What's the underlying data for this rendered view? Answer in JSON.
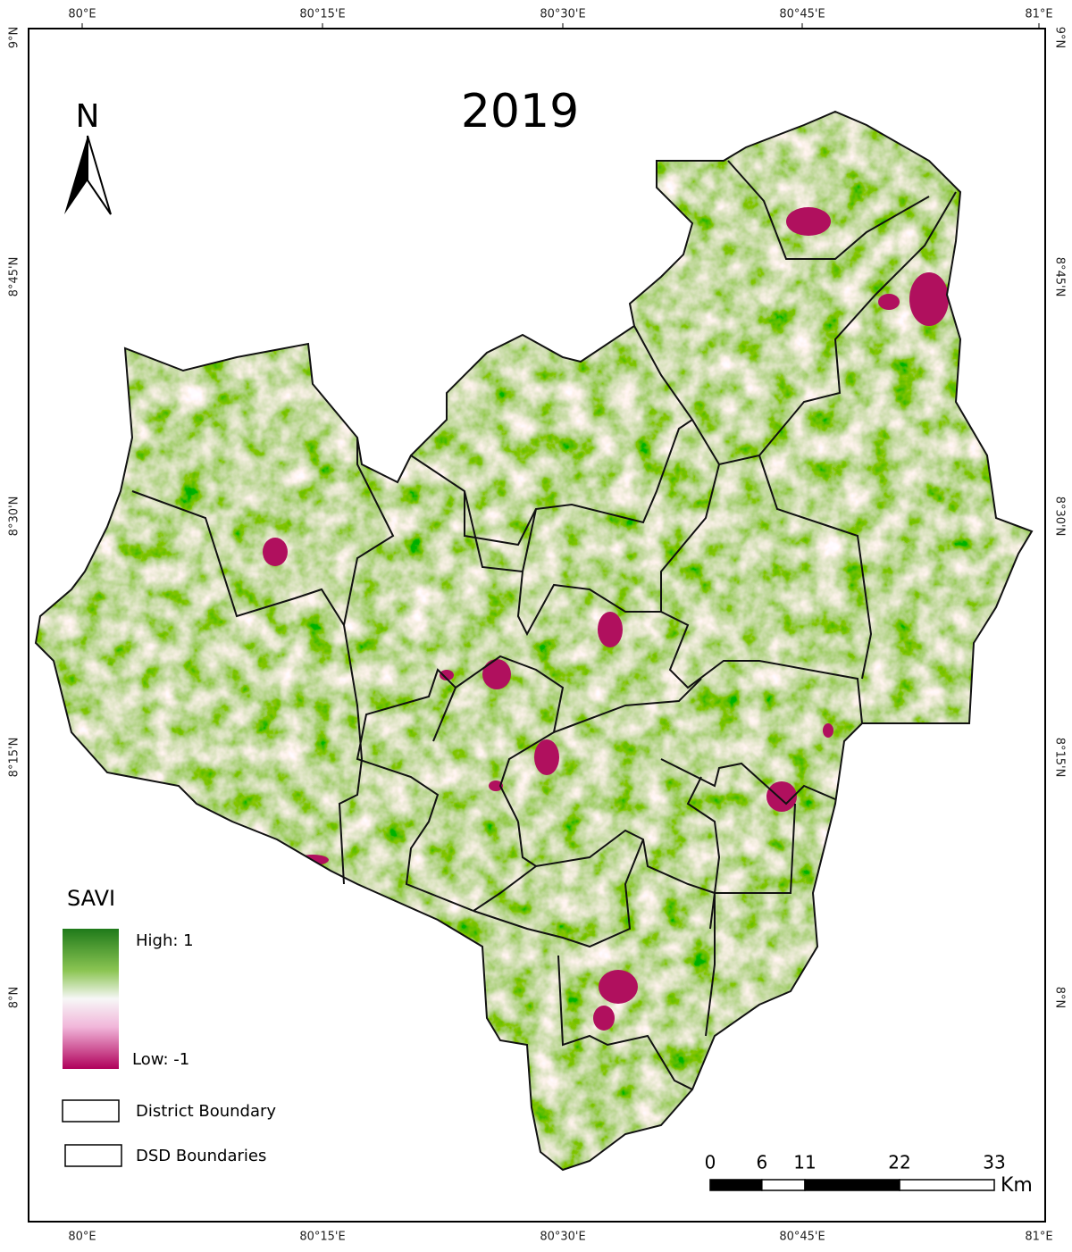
{
  "title": "2019",
  "north_arrow": "N",
  "graticule": {
    "longitudes": [
      "80°E",
      "80°15'E",
      "80°30'E",
      "80°45'E",
      "81°E"
    ],
    "latitudes": [
      "9°N",
      "8°45'N",
      "8°30'N",
      "8°15'N",
      "8°N"
    ]
  },
  "legend": {
    "title": "SAVI",
    "high": "High:  1",
    "low": "Low: -1",
    "items": [
      "District Boundary",
      "DSD Boundaries"
    ]
  },
  "scale_bar": {
    "ticks": [
      0,
      6,
      11,
      22,
      33
    ],
    "unit": "Km"
  }
}
